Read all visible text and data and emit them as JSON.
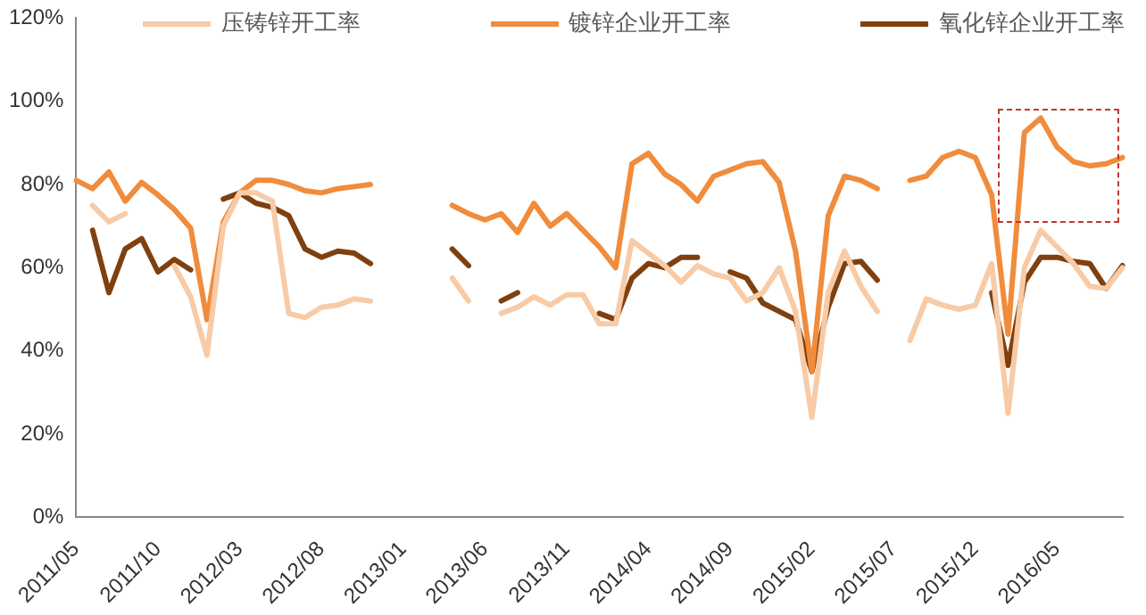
{
  "chart_data": {
    "type": "line",
    "categories": [
      "2011/05",
      null,
      null,
      null,
      null,
      "2011/10",
      null,
      null,
      null,
      null,
      "2012/03",
      null,
      null,
      null,
      null,
      "2012/08",
      null,
      null,
      null,
      null,
      "2013/01",
      null,
      null,
      null,
      null,
      "2013/06",
      null,
      null,
      null,
      null,
      "2013/11",
      null,
      null,
      null,
      null,
      "2014/04",
      null,
      null,
      null,
      null,
      "2014/09",
      null,
      null,
      null,
      null,
      "2015/02",
      null,
      null,
      null,
      null,
      "2015/07",
      null,
      null,
      null,
      null,
      "2015/12",
      null,
      null,
      null,
      null,
      "2016/05",
      null,
      null,
      null,
      null
    ],
    "series": [
      {
        "name": "压铸锌开工率",
        "color": "#f8cba6",
        "values": [
          null,
          75,
          71,
          73,
          null,
          null,
          60.5,
          53,
          39,
          70,
          78,
          78,
          76,
          49,
          48,
          50.5,
          51,
          52.5,
          52,
          null,
          null,
          null,
          null,
          57.5,
          52,
          null,
          49,
          50.5,
          53,
          51,
          53.5,
          53.5,
          46.5,
          46.5,
          66.5,
          63.5,
          60.5,
          56.5,
          60.5,
          58.5,
          57.5,
          52,
          54,
          60,
          49.5,
          24,
          54,
          64,
          55.5,
          49.5,
          null,
          42.5,
          52.5,
          51,
          50,
          51,
          61,
          25,
          60,
          69,
          65,
          61,
          55.5,
          55,
          60
        ]
      },
      {
        "name": "镀锌企业开工率",
        "color": "#f08c3c",
        "values": [
          81,
          79,
          83,
          76,
          80.5,
          77.5,
          74,
          69.5,
          47.5,
          71,
          78,
          81,
          81,
          80,
          78.5,
          78,
          79,
          79.5,
          80,
          null,
          null,
          null,
          null,
          75,
          73,
          71.5,
          73,
          68.5,
          75.5,
          70,
          73,
          69,
          65,
          60,
          85,
          87.5,
          82.5,
          80,
          76,
          82,
          83.5,
          85,
          85.5,
          80.5,
          64,
          35,
          72.5,
          82,
          81,
          79,
          null,
          81,
          82,
          86.5,
          88,
          86.5,
          77.5,
          44,
          92.5,
          96,
          89,
          85.5,
          84.5,
          85,
          86.5
        ]
      },
      {
        "name": "氧化锌企业开工率",
        "color": "#7f4010",
        "values": [
          null,
          69,
          54,
          64.5,
          67,
          59,
          62,
          59.5,
          null,
          76.5,
          78,
          75.5,
          74.5,
          72.5,
          64.5,
          62.5,
          64,
          63.5,
          61,
          null,
          null,
          null,
          null,
          64.5,
          60.5,
          null,
          52,
          54,
          null,
          null,
          null,
          null,
          49,
          47.5,
          57.5,
          61,
          60,
          62.5,
          62.5,
          null,
          59,
          57.5,
          51.5,
          49.5,
          47.5,
          35,
          50.5,
          61,
          61.5,
          57,
          null,
          null,
          null,
          null,
          null,
          null,
          54,
          36.5,
          56.5,
          62.5,
          62.5,
          61.5,
          61,
          55,
          60.5
        ]
      }
    ],
    "ylim": [
      0,
      120
    ],
    "yticks": [
      {
        "value": 0,
        "label": "0%"
      },
      {
        "value": 20,
        "label": "20%"
      },
      {
        "value": 40,
        "label": "40%"
      },
      {
        "value": 60,
        "label": "60%"
      },
      {
        "value": 80,
        "label": "80%"
      },
      {
        "value": 100,
        "label": "100%"
      },
      {
        "value": 120,
        "label": "120%"
      }
    ],
    "grid": false,
    "legend": "top",
    "marker": "none",
    "line_style": "solid"
  }
}
